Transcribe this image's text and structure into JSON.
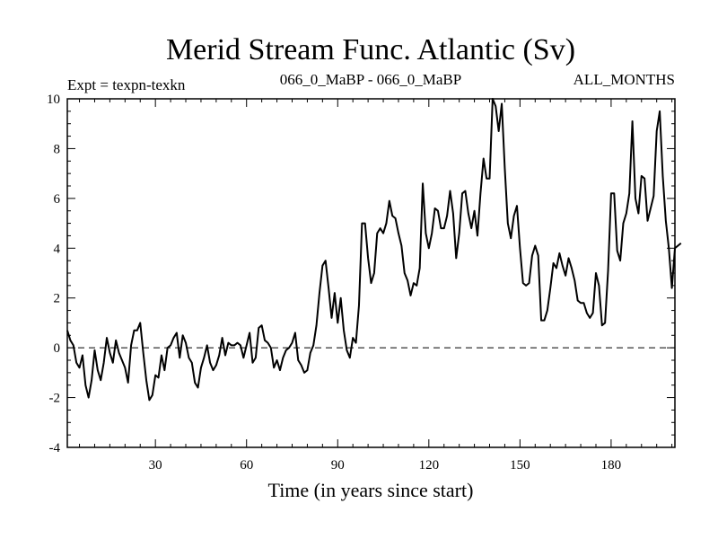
{
  "chart_data": {
    "type": "line",
    "title": "Merid Stream Func. Atlantic (Sv)",
    "subtitle_left": "Expt = texpn-texkn",
    "subtitle_center": "066_0_MaBP - 066_0_MaBP",
    "subtitle_right": "ALL_MONTHS",
    "xlabel": "Time (in years since start)",
    "ylabel": "",
    "xlim": [
      1,
      201
    ],
    "ylim": [
      -4,
      10
    ],
    "x_ticks": [
      30,
      60,
      90,
      120,
      150,
      180
    ],
    "y_ticks": [
      -4,
      -2,
      0,
      2,
      4,
      6,
      8,
      10
    ],
    "reference_line": {
      "y": 0,
      "style": "dashed"
    },
    "series": [
      {
        "name": "Merid Stream Func. Atlantic",
        "x_start": 1,
        "x_step": 1,
        "values": [
          0.7,
          0.3,
          0.1,
          -0.6,
          -0.8,
          -0.3,
          -1.5,
          -2.0,
          -1.3,
          -0.1,
          -0.9,
          -1.3,
          -0.6,
          0.4,
          -0.2,
          -0.6,
          0.3,
          -0.2,
          -0.5,
          -0.8,
          -1.4,
          0.1,
          0.7,
          0.7,
          1.0,
          -0.2,
          -1.3,
          -2.1,
          -1.9,
          -1.1,
          -1.2,
          -0.3,
          -0.9,
          0.0,
          0.1,
          0.4,
          0.6,
          -0.4,
          0.5,
          0.2,
          -0.4,
          -0.6,
          -1.4,
          -1.6,
          -0.8,
          -0.4,
          0.1,
          -0.6,
          -0.9,
          -0.7,
          -0.3,
          0.4,
          -0.3,
          0.2,
          0.1,
          0.1,
          0.2,
          0.1,
          -0.4,
          0.1,
          0.6,
          -0.6,
          -0.4,
          0.8,
          0.9,
          0.3,
          0.2,
          0.0,
          -0.8,
          -0.5,
          -0.9,
          -0.4,
          -0.1,
          0.0,
          0.2,
          0.6,
          -0.5,
          -0.7,
          -1.0,
          -0.9,
          -0.2,
          0.1,
          0.9,
          2.2,
          3.3,
          3.5,
          2.4,
          1.2,
          2.2,
          1.0,
          2.0,
          0.7,
          -0.1,
          -0.4,
          0.4,
          0.2,
          1.7,
          5.0,
          5.0,
          3.6,
          2.6,
          3.0,
          4.6,
          4.8,
          4.6,
          5.0,
          5.9,
          5.3,
          5.2,
          4.6,
          4.1,
          3.0,
          2.7,
          2.1,
          2.6,
          2.5,
          3.2,
          6.6,
          4.6,
          4.0,
          4.6,
          5.6,
          5.5,
          4.8,
          4.8,
          5.3,
          6.3,
          5.4,
          3.6,
          4.6,
          6.2,
          6.3,
          5.4,
          4.8,
          5.5,
          4.5,
          6.2,
          7.6,
          6.8,
          6.8,
          10.0,
          9.7,
          8.7,
          9.8,
          7.2,
          5.0,
          4.4,
          5.3,
          5.7,
          4.0,
          2.6,
          2.5,
          2.6,
          3.7,
          4.1,
          3.7,
          1.1,
          1.1,
          1.5,
          2.4,
          3.4,
          3.2,
          3.8,
          3.3,
          2.9,
          3.6,
          3.2,
          2.7,
          1.9,
          1.8,
          1.8,
          1.4,
          1.2,
          1.4,
          3.0,
          2.5,
          0.9,
          1.0,
          3.1,
          6.2,
          6.2,
          3.9,
          3.5,
          5.0,
          5.4,
          6.2,
          9.1,
          6.0,
          5.4,
          6.9,
          6.8,
          5.1,
          5.6,
          6.1,
          8.7,
          9.5,
          6.9,
          5.1,
          4.0,
          2.4,
          4.0,
          4.1,
          4.2
        ]
      }
    ]
  }
}
